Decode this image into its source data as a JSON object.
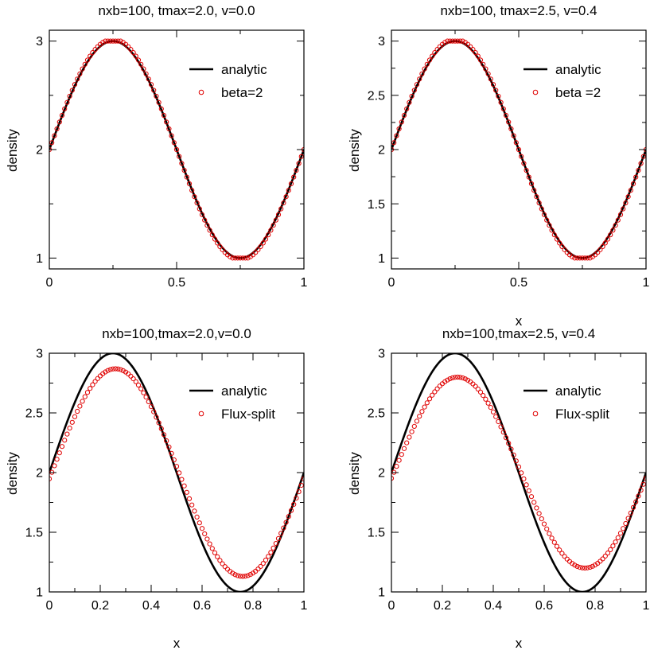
{
  "chart_data": [
    {
      "type": "line",
      "title": "nxb=100, tmax=2.0, v=0.0",
      "xlabel": "",
      "ylabel": "density",
      "xlim": [
        0,
        1
      ],
      "ylim": [
        0.9,
        3.1
      ],
      "xticks": [
        0,
        0.5,
        1
      ],
      "xtick_labels": [
        "0",
        "0.5",
        "1"
      ],
      "yticks": [
        1,
        2,
        3
      ],
      "ytick_labels": [
        "1",
        "2",
        "3"
      ],
      "legend_position": "top-right",
      "grid": false,
      "series": [
        {
          "name": "analytic",
          "kind": "line",
          "color": "#000000",
          "function": "2 + sin(2*pi*x)",
          "x_range": [
            0,
            1
          ]
        },
        {
          "name": "beta=2",
          "kind": "markers",
          "marker": "open-circle",
          "color": "#e00000",
          "function": "2 + clip(1.02*sin(2*pi*x), -1, 1)",
          "x_range": [
            0,
            1
          ],
          "n_points": 100
        }
      ]
    },
    {
      "type": "line",
      "title": "nxb=100, tmax=2.5, v=0.4",
      "xlabel": "x",
      "ylabel": "density",
      "xlim": [
        0,
        1
      ],
      "ylim": [
        0.9,
        3.1
      ],
      "xticks": [
        0,
        0.5,
        1
      ],
      "xtick_labels": [
        "0",
        "0.5",
        "1"
      ],
      "yticks": [
        1,
        1.5,
        2,
        2.5,
        3
      ],
      "ytick_labels": [
        "1",
        "1.5",
        "2",
        "2.5",
        "3"
      ],
      "legend_position": "top-right",
      "grid": false,
      "series": [
        {
          "name": "analytic",
          "kind": "line",
          "color": "#000000",
          "function": "2 + sin(2*pi*x)",
          "x_range": [
            0,
            1
          ]
        },
        {
          "name": "beta =2",
          "kind": "markers",
          "marker": "open-circle",
          "color": "#e00000",
          "function": "2 + clip(1.02*sin(2*pi*x), -1, 1)",
          "x_range": [
            0,
            1
          ],
          "n_points": 100
        }
      ]
    },
    {
      "type": "line",
      "title": "nxb=100,tmax=2.0,v=0.0",
      "xlabel": "x",
      "ylabel": "density",
      "xlim": [
        0,
        1
      ],
      "ylim": [
        1,
        3
      ],
      "xticks": [
        0,
        0.2,
        0.4,
        0.6,
        0.8,
        1
      ],
      "xtick_labels": [
        "0",
        "0.2",
        "0.4",
        "0.6",
        "0.8",
        "1"
      ],
      "yticks": [
        1,
        1.5,
        2,
        2.5,
        3
      ],
      "ytick_labels": [
        "1",
        "1.5",
        "2",
        "2.5",
        "3"
      ],
      "legend_position": "top-right",
      "grid": false,
      "series": [
        {
          "name": "analytic",
          "kind": "line",
          "color": "#000000",
          "function": "2 + sin(2*pi*x)",
          "x_range": [
            0,
            1
          ]
        },
        {
          "name": "Flux-split",
          "kind": "markers",
          "marker": "open-circle",
          "color": "#e00000",
          "function": "2 + 0.87*sin(2*pi*x - 0.06)",
          "x_range": [
            0,
            1
          ],
          "n_points": 100
        }
      ]
    },
    {
      "type": "line",
      "title": "nxb=100,tmax=2.5, v=0.4",
      "xlabel": "x",
      "ylabel": "density",
      "xlim": [
        0,
        1
      ],
      "ylim": [
        1,
        3
      ],
      "xticks": [
        0,
        0.2,
        0.4,
        0.6,
        0.8,
        1
      ],
      "xtick_labels": [
        "0",
        "0.2",
        "0.4",
        "0.6",
        "0.8",
        "1"
      ],
      "yticks": [
        1,
        1.5,
        2,
        2.5,
        3
      ],
      "ytick_labels": [
        "1",
        "1.5",
        "2",
        "2.5",
        "3"
      ],
      "legend_position": "top-right",
      "grid": false,
      "series": [
        {
          "name": "analytic",
          "kind": "line",
          "color": "#000000",
          "function": "2 + sin(2*pi*x)",
          "x_range": [
            0,
            1
          ]
        },
        {
          "name": "Flux-split",
          "kind": "markers",
          "marker": "open-circle",
          "color": "#e00000",
          "function": "2 + 0.80*sin(2*pi*x - 0.06)",
          "x_range": [
            0,
            1
          ],
          "n_points": 100
        }
      ]
    }
  ]
}
